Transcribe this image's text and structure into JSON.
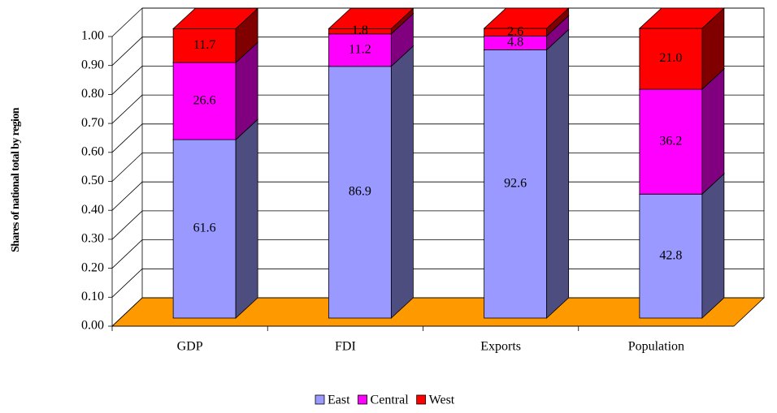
{
  "chart_data": {
    "type": "bar3d_stacked",
    "y_label": "Shares of national total by region",
    "categories": [
      "GDP",
      "FDI",
      "Exports",
      "Population"
    ],
    "series": [
      {
        "name": "East",
        "color": "#9999ff",
        "side_color": "#4d4d80",
        "values": [
          0.616,
          0.869,
          0.926,
          0.428
        ],
        "value_labels": [
          "61.6",
          "86.9",
          "92.6",
          "42.8"
        ]
      },
      {
        "name": "Central",
        "color": "#ff00ff",
        "side_color": "#800080",
        "values": [
          0.266,
          0.112,
          0.048,
          0.362
        ],
        "value_labels": [
          "26.6",
          "11.2",
          "4.8",
          "36.2"
        ]
      },
      {
        "name": "West",
        "color": "#ff0000",
        "side_color": "#800000",
        "values": [
          0.117,
          0.018,
          0.026,
          0.21
        ],
        "value_labels": [
          "11.7",
          "1.8",
          "2.6",
          "21.0"
        ]
      }
    ],
    "ylim": [
      0,
      1
    ],
    "yticks": [
      {
        "value": 0,
        "label": "0.00"
      },
      {
        "value": 0.1,
        "label": "0.10"
      },
      {
        "value": 0.2,
        "label": "0.20"
      },
      {
        "value": 0.3,
        "label": "0.30"
      },
      {
        "value": 0.4,
        "label": "0.40"
      },
      {
        "value": 0.5,
        "label": "0.50"
      },
      {
        "value": 0.6,
        "label": "0.60"
      },
      {
        "value": 0.7,
        "label": "0.70"
      },
      {
        "value": 0.8,
        "label": "0.80"
      },
      {
        "value": 0.9,
        "label": "0.90"
      },
      {
        "value": 1,
        "label": "1.00"
      }
    ],
    "grid": true,
    "floor_color": "#ff9900",
    "legend": "bottom"
  }
}
